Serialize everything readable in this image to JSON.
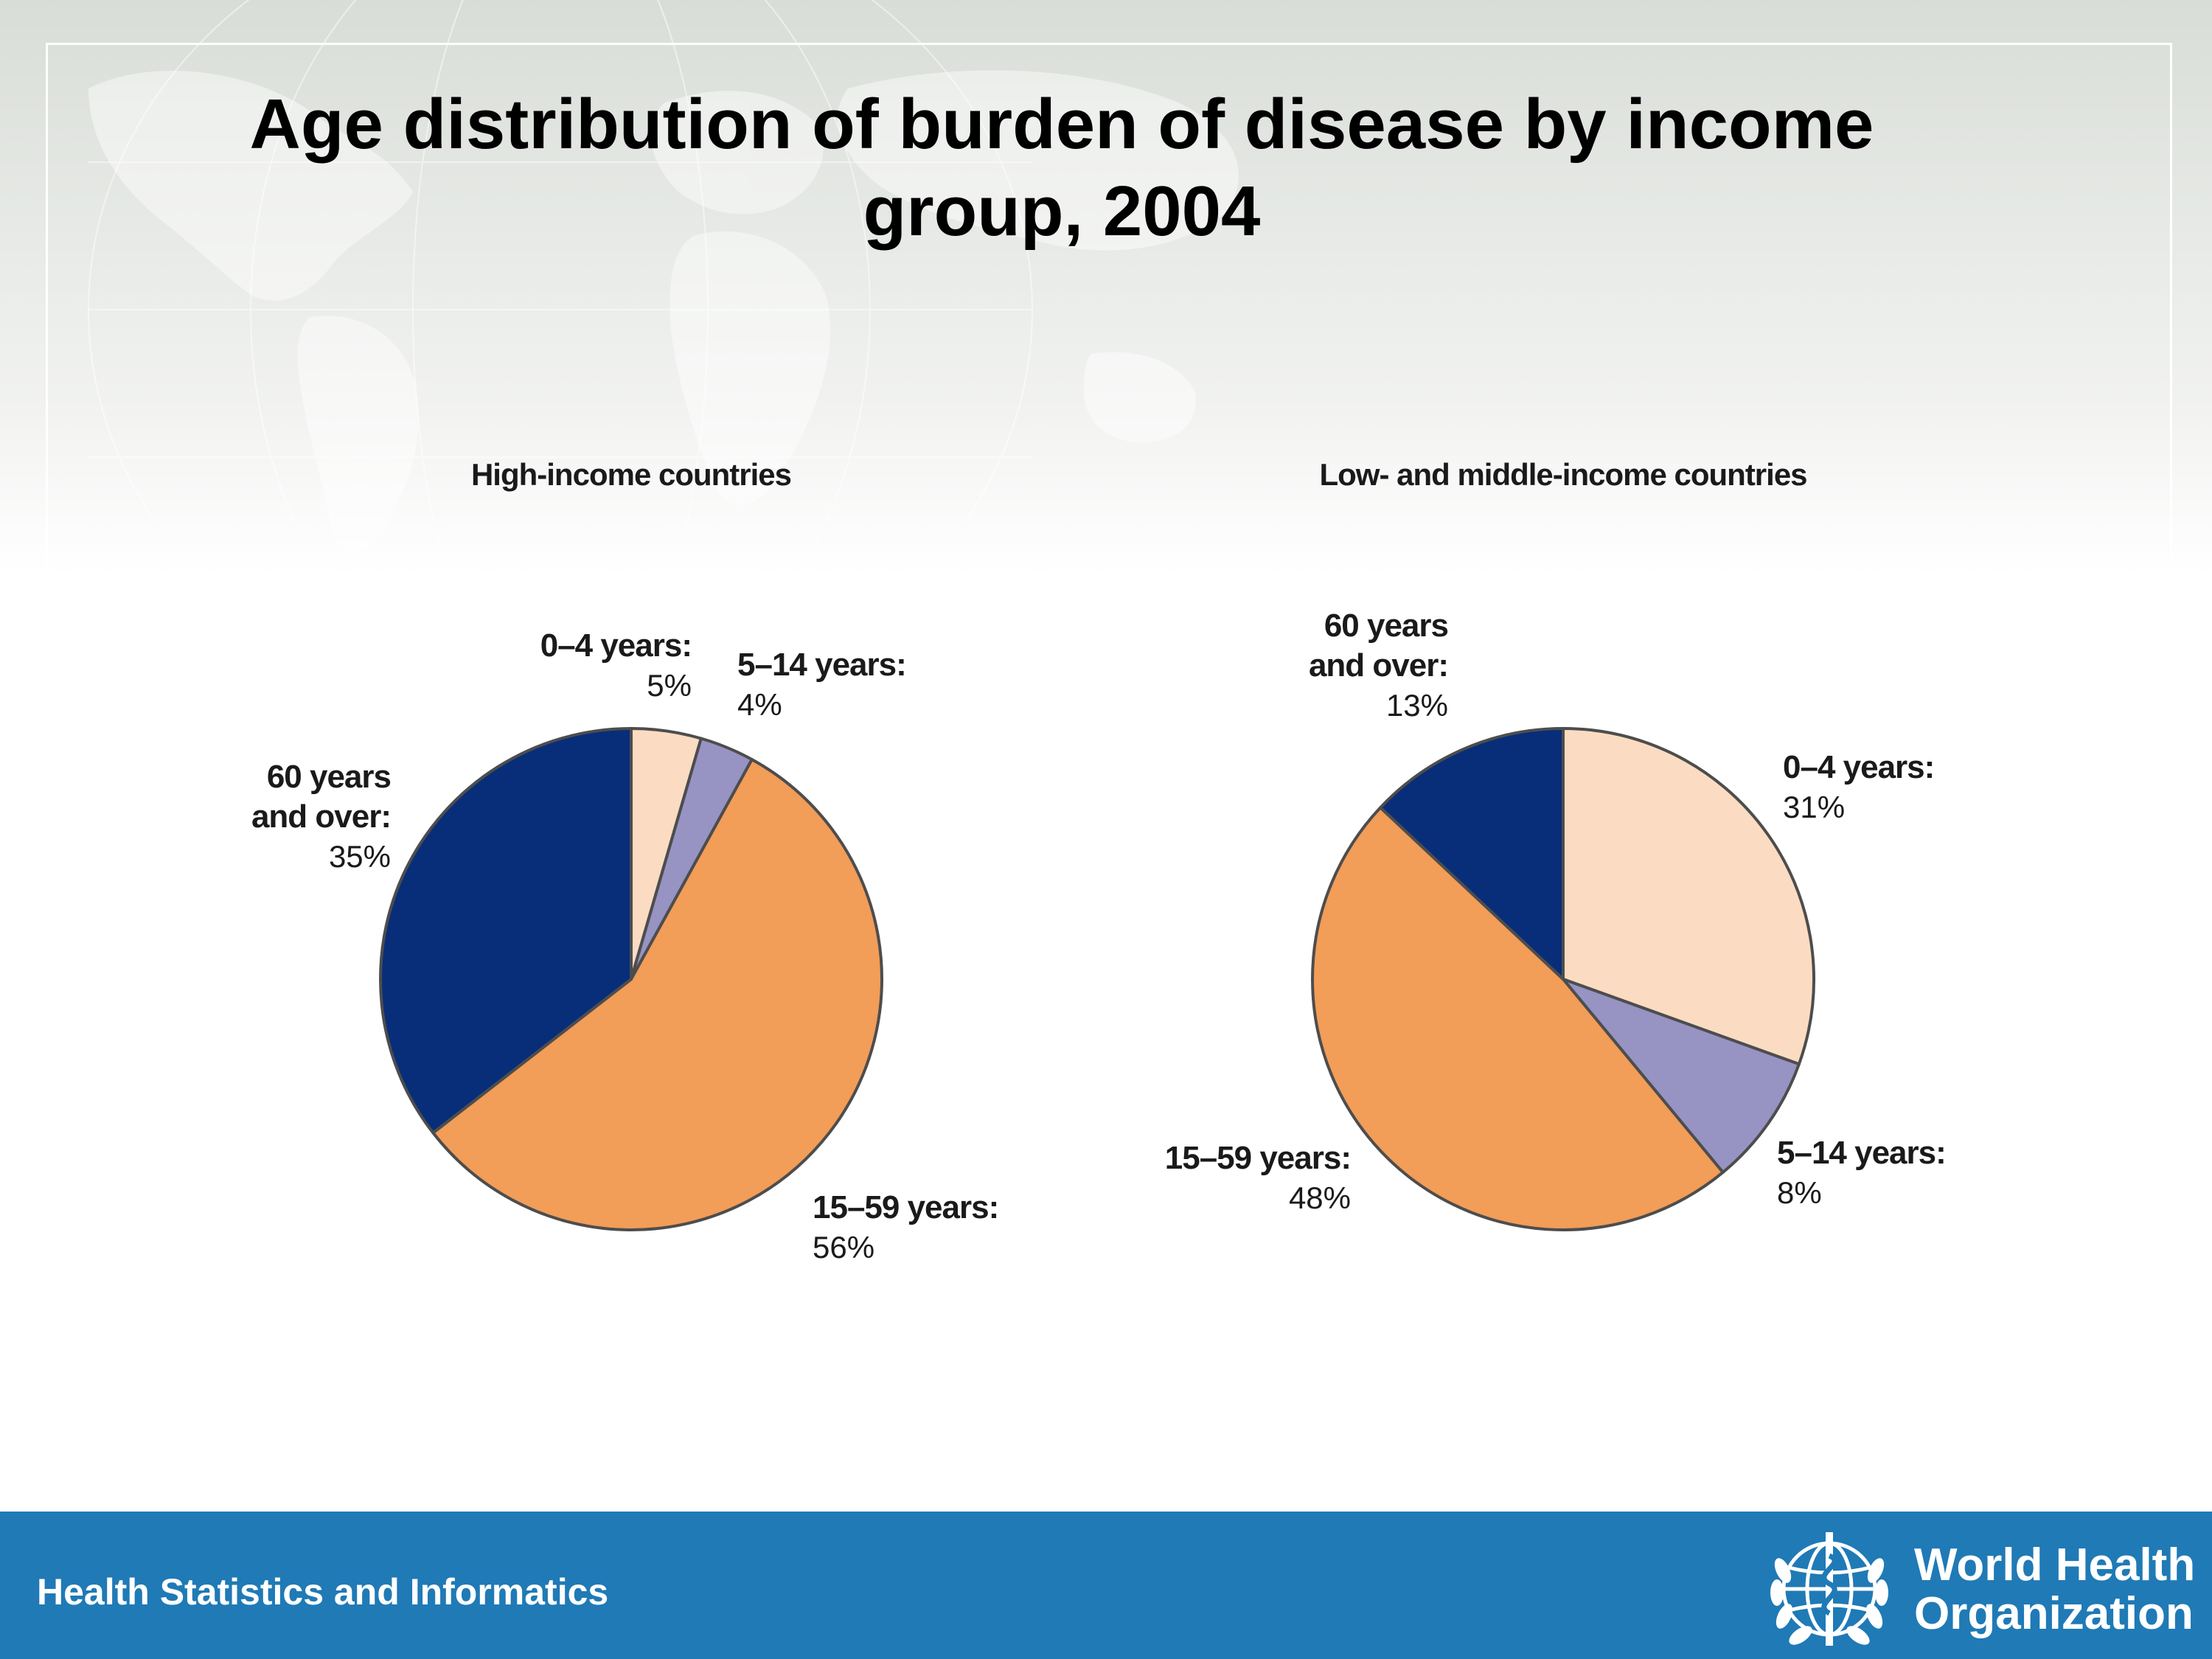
{
  "title_line1": "Age distribution of burden of disease by income",
  "title_line2": "group, 2004",
  "footer": {
    "left_text": "Health Statistics and Informatics",
    "org_line1": "World Health",
    "org_line2": "Organization",
    "emblem_icon": "who-emblem-icon"
  },
  "colors": {
    "footer": "#1f7ab6",
    "age_0_4": "#fbdcc2",
    "age_5_14": "#9793c3",
    "age_15_59": "#f29d58",
    "age_60_plus": "#082e7a"
  },
  "chart_data": [
    {
      "type": "pie",
      "title": "High-income countries",
      "slices": [
        {
          "label_lines": [
            "0–4 years:"
          ],
          "value_label": "5%",
          "value": 4.5,
          "color": "#fbdcc2"
        },
        {
          "label_lines": [
            "5–14 years:"
          ],
          "value_label": "4%",
          "value": 3.5,
          "color": "#9793c3"
        },
        {
          "label_lines": [
            "15–59 years:"
          ],
          "value_label": "56%",
          "value": 56.5,
          "color": "#f29d58"
        },
        {
          "label_lines": [
            "60 years",
            "and over:"
          ],
          "value_label": "35%",
          "value": 35.5,
          "color": "#082e7a"
        }
      ]
    },
    {
      "type": "pie",
      "title": "Low- and middle-income countries",
      "slices": [
        {
          "label_lines": [
            "0–4 years:"
          ],
          "value_label": "31%",
          "value": 30.5,
          "color": "#fbdcc2"
        },
        {
          "label_lines": [
            "5–14 years:"
          ],
          "value_label": "8%",
          "value": 8.5,
          "color": "#9793c3"
        },
        {
          "label_lines": [
            "15–59 years:"
          ],
          "value_label": "48%",
          "value": 48,
          "color": "#f29d58"
        },
        {
          "label_lines": [
            "60 years",
            "and over:"
          ],
          "value_label": "13%",
          "value": 13,
          "color": "#082e7a"
        }
      ]
    }
  ]
}
